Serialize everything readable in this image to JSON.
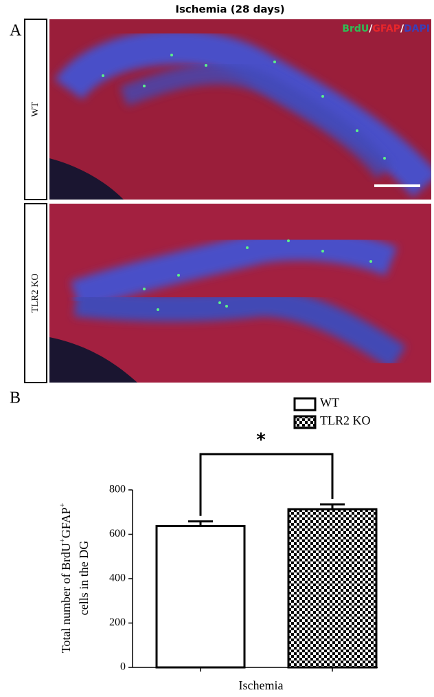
{
  "panel_a": {
    "label": "A",
    "title": "Ischemia (28 days)",
    "stains": [
      {
        "text": "BrdU",
        "color": "#2fbf55"
      },
      {
        "text": "GFAP",
        "color": "#e8262b"
      },
      {
        "text": "DAPI",
        "color": "#3a3fb8"
      }
    ],
    "separator": "/",
    "rows": [
      "WT",
      "TLR2 KO"
    ]
  },
  "chart_data": {
    "type": "bar",
    "panel_label": "B",
    "x_label": "Ischemia",
    "y_label": {
      "line1": [
        "Total number of BrdU",
        "+",
        "GFAP",
        "+"
      ],
      "line2": "cells in the DG"
    },
    "annotation": "*",
    "series": [
      {
        "name": "WT",
        "color": "#ffffff",
        "values": [
          637
        ],
        "errors": [
          21
        ]
      },
      {
        "name": "TLR2 KO",
        "color": "#000000",
        "pattern": "checkerboard",
        "values": [
          713
        ],
        "errors": [
          22
        ]
      }
    ],
    "ylim": [
      0,
      800
    ],
    "yticks": [
      0,
      200,
      400,
      600,
      800
    ]
  }
}
